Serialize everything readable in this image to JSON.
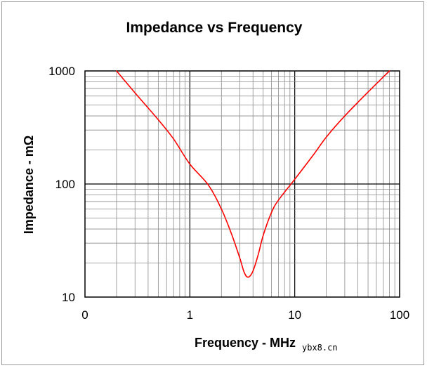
{
  "chart_data": {
    "type": "line",
    "title": "Impedance vs Frequency",
    "xlabel": "Frequency - MHz",
    "ylabel": "Impedance - mΩ",
    "x_scale": "log",
    "y_scale": "log",
    "xlim": [
      0.1,
      100
    ],
    "ylim": [
      10,
      1000
    ],
    "x_tick_labels": [
      "0",
      "1",
      "10",
      "100"
    ],
    "y_tick_labels": [
      "10",
      "100",
      "1000"
    ],
    "grid": true,
    "series": [
      {
        "name": "Impedance",
        "color": "#ff0000",
        "x": [
          0.2,
          0.3,
          0.5,
          0.7,
          1.0,
          1.5,
          2.0,
          2.5,
          3.0,
          3.3,
          3.6,
          4.0,
          4.5,
          5.0,
          6.0,
          7.0,
          10.0,
          15.0,
          20.0,
          30.0,
          50.0,
          80.0
        ],
        "y": [
          1000,
          640,
          370,
          250,
          150,
          98,
          60,
          36,
          22,
          16.5,
          15,
          17,
          24,
          35,
          56,
          72,
          110,
          180,
          260,
          400,
          650,
          1000
        ]
      }
    ]
  },
  "watermark": "ybx8.cn"
}
